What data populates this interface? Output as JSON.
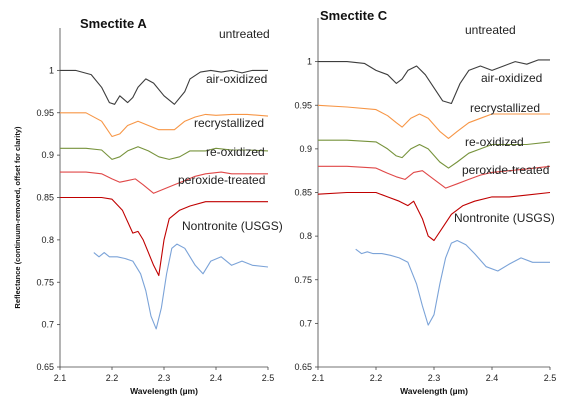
{
  "chart_data": [
    {
      "type": "line",
      "title": "Smectite A",
      "xlabel": "Wavelength (µm)",
      "ylabel": "Reflectance (continuum-removed, offset for clarity)",
      "xlim": [
        2.1,
        2.5
      ],
      "ylim": [
        0.65,
        1.05
      ],
      "xticks": [
        "2.1",
        "2.2",
        "2.3",
        "2.4",
        "2.5"
      ],
      "yticks": [
        "0.65",
        "0.7",
        "0.75",
        "0.8",
        "0.85",
        "0.9",
        "0.95",
        "1"
      ],
      "grid": false,
      "series": [
        {
          "name": "untreated",
          "color": "#3d3d3d",
          "x": [
            2.1,
            2.13,
            2.16,
            2.18,
            2.195,
            2.205,
            2.215,
            2.23,
            2.24,
            2.25,
            2.265,
            2.28,
            2.3,
            2.32,
            2.34,
            2.35,
            2.37,
            2.39,
            2.41,
            2.43,
            2.45,
            2.47,
            2.5
          ],
          "y": [
            1.0,
            1.0,
            0.995,
            0.98,
            0.962,
            0.96,
            0.97,
            0.962,
            0.968,
            0.98,
            0.99,
            0.985,
            0.97,
            0.96,
            0.975,
            0.99,
            0.998,
            1.0,
            0.998,
            1.0,
            0.997,
            1.0,
            1.0
          ]
        },
        {
          "name": "air-oxidized",
          "color": "#f79646",
          "x": [
            2.1,
            2.15,
            2.18,
            2.2,
            2.215,
            2.23,
            2.25,
            2.27,
            2.29,
            2.32,
            2.34,
            2.36,
            2.38,
            2.4,
            2.43,
            2.46,
            2.5
          ],
          "y": [
            0.95,
            0.95,
            0.94,
            0.922,
            0.925,
            0.935,
            0.94,
            0.935,
            0.93,
            0.93,
            0.94,
            0.945,
            0.948,
            0.947,
            0.948,
            0.948,
            0.946
          ]
        },
        {
          "name": "recrystallized",
          "color": "#77933c",
          "x": [
            2.1,
            2.15,
            2.18,
            2.2,
            2.215,
            2.23,
            2.25,
            2.27,
            2.29,
            2.31,
            2.33,
            2.35,
            2.38,
            2.4,
            2.43,
            2.46,
            2.5
          ],
          "y": [
            0.908,
            0.908,
            0.906,
            0.895,
            0.898,
            0.905,
            0.91,
            0.905,
            0.898,
            0.895,
            0.898,
            0.905,
            0.905,
            0.908,
            0.906,
            0.906,
            0.905
          ]
        },
        {
          "name": "re-oxidized",
          "color": "#e04848",
          "x": [
            2.1,
            2.15,
            2.18,
            2.2,
            2.215,
            2.23,
            2.245,
            2.26,
            2.28,
            2.3,
            2.32,
            2.34,
            2.36,
            2.38,
            2.41,
            2.43,
            2.46,
            2.5
          ],
          "y": [
            0.88,
            0.88,
            0.878,
            0.872,
            0.868,
            0.87,
            0.872,
            0.865,
            0.855,
            0.86,
            0.865,
            0.87,
            0.875,
            0.878,
            0.88,
            0.878,
            0.878,
            0.878
          ]
        },
        {
          "name": "peroxide-treated",
          "color": "#c00000",
          "x": [
            2.1,
            2.15,
            2.18,
            2.2,
            2.22,
            2.24,
            2.25,
            2.26,
            2.27,
            2.28,
            2.29,
            2.3,
            2.31,
            2.33,
            2.35,
            2.38,
            2.4,
            2.43,
            2.46,
            2.5
          ],
          "y": [
            0.85,
            0.85,
            0.85,
            0.848,
            0.835,
            0.808,
            0.81,
            0.8,
            0.785,
            0.77,
            0.758,
            0.8,
            0.825,
            0.835,
            0.84,
            0.845,
            0.845,
            0.845,
            0.845,
            0.845
          ]
        },
        {
          "name": "Nontronite (USGS)",
          "color": "#7ba3d8",
          "x": [
            2.165,
            2.175,
            2.185,
            2.195,
            2.21,
            2.225,
            2.24,
            2.255,
            2.265,
            2.275,
            2.285,
            2.295,
            2.305,
            2.315,
            2.325,
            2.34,
            2.35,
            2.36,
            2.375,
            2.39,
            2.41,
            2.43,
            2.45,
            2.47,
            2.5
          ],
          "y": [
            0.785,
            0.78,
            0.785,
            0.78,
            0.78,
            0.778,
            0.775,
            0.76,
            0.74,
            0.71,
            0.695,
            0.72,
            0.76,
            0.79,
            0.795,
            0.79,
            0.78,
            0.77,
            0.76,
            0.775,
            0.78,
            0.77,
            0.775,
            0.77,
            0.768
          ]
        }
      ]
    },
    {
      "type": "line",
      "title": "Smectite C",
      "xlabel": "Wavelength (µm)",
      "ylabel": "",
      "xlim": [
        2.1,
        2.5
      ],
      "ylim": [
        0.65,
        1.05
      ],
      "xticks": [
        "2.1",
        "2.2",
        "2.3",
        "2.4",
        "2.5"
      ],
      "yticks": [
        "0.65",
        "0.7",
        "0.75",
        "0.8",
        "0.85",
        "0.9",
        "0.95",
        "1"
      ],
      "grid": false,
      "series": [
        {
          "name": "untreated",
          "color": "#3d3d3d",
          "x": [
            2.1,
            2.15,
            2.18,
            2.2,
            2.22,
            2.235,
            2.245,
            2.255,
            2.27,
            2.285,
            2.3,
            2.315,
            2.33,
            2.345,
            2.36,
            2.38,
            2.4,
            2.42,
            2.44,
            2.46,
            2.48,
            2.5
          ],
          "y": [
            1.0,
            1.0,
            0.998,
            0.99,
            0.985,
            0.975,
            0.98,
            0.99,
            0.995,
            0.985,
            0.97,
            0.955,
            0.952,
            0.975,
            0.99,
            0.995,
            0.99,
            0.995,
            1.0,
            0.997,
            1.002,
            1.002
          ]
        },
        {
          "name": "air-oxidized",
          "color": "#f79646",
          "x": [
            2.1,
            2.15,
            2.2,
            2.22,
            2.235,
            2.245,
            2.26,
            2.275,
            2.29,
            2.31,
            2.325,
            2.34,
            2.36,
            2.38,
            2.4,
            2.43,
            2.46,
            2.5
          ],
          "y": [
            0.95,
            0.948,
            0.945,
            0.938,
            0.93,
            0.925,
            0.935,
            0.94,
            0.935,
            0.92,
            0.912,
            0.92,
            0.93,
            0.935,
            0.94,
            0.94,
            0.94,
            0.94
          ]
        },
        {
          "name": "recrystallized",
          "color": "#77933c",
          "x": [
            2.1,
            2.15,
            2.2,
            2.22,
            2.235,
            2.245,
            2.26,
            2.275,
            2.29,
            2.31,
            2.325,
            2.34,
            2.36,
            2.38,
            2.4,
            2.43,
            2.46,
            2.5
          ],
          "y": [
            0.91,
            0.91,
            0.908,
            0.9,
            0.892,
            0.89,
            0.9,
            0.905,
            0.9,
            0.885,
            0.878,
            0.885,
            0.895,
            0.9,
            0.905,
            0.905,
            0.905,
            0.908
          ]
        },
        {
          "name": "re-oxidized",
          "color": "#e04848",
          "x": [
            2.1,
            2.15,
            2.2,
            2.22,
            2.235,
            2.25,
            2.265,
            2.28,
            2.3,
            2.32,
            2.34,
            2.36,
            2.38,
            2.4,
            2.43,
            2.46,
            2.5
          ],
          "y": [
            0.88,
            0.88,
            0.878,
            0.872,
            0.868,
            0.865,
            0.873,
            0.875,
            0.865,
            0.855,
            0.86,
            0.865,
            0.87,
            0.873,
            0.875,
            0.877,
            0.88
          ]
        },
        {
          "name": "peroxide-treated",
          "color": "#c00000",
          "x": [
            2.1,
            2.15,
            2.2,
            2.22,
            2.24,
            2.255,
            2.265,
            2.28,
            2.29,
            2.3,
            2.315,
            2.33,
            2.35,
            2.37,
            2.4,
            2.43,
            2.46,
            2.5
          ],
          "y": [
            0.848,
            0.85,
            0.85,
            0.845,
            0.84,
            0.835,
            0.84,
            0.82,
            0.8,
            0.795,
            0.81,
            0.825,
            0.835,
            0.84,
            0.845,
            0.845,
            0.847,
            0.85
          ]
        },
        {
          "name": "Nontronite (USGS)",
          "color": "#7ba3d8",
          "x": [
            2.165,
            2.175,
            2.185,
            2.195,
            2.21,
            2.225,
            2.24,
            2.255,
            2.27,
            2.28,
            2.29,
            2.3,
            2.31,
            2.32,
            2.33,
            2.34,
            2.355,
            2.37,
            2.39,
            2.41,
            2.43,
            2.45,
            2.47,
            2.5
          ],
          "y": [
            0.785,
            0.78,
            0.782,
            0.78,
            0.78,
            0.778,
            0.775,
            0.77,
            0.745,
            0.72,
            0.698,
            0.71,
            0.745,
            0.775,
            0.792,
            0.795,
            0.79,
            0.78,
            0.765,
            0.76,
            0.768,
            0.775,
            0.77,
            0.77
          ]
        }
      ]
    }
  ]
}
